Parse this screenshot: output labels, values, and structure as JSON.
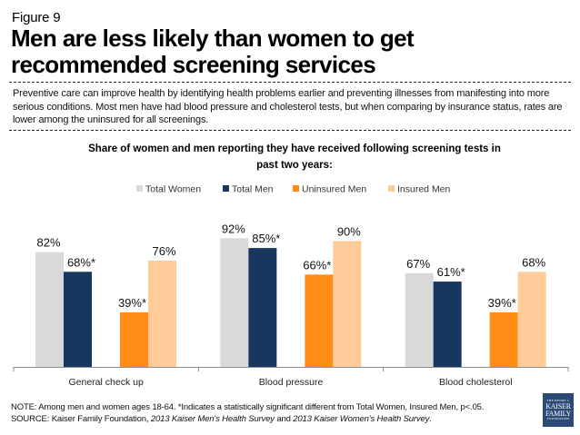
{
  "header": {
    "figure_label": "Figure 9",
    "title": "Men are less likely than women to get recommended screening services",
    "description": "Preventive care can improve health by identifying health problems earlier and preventing illnesses from manifesting into more serious conditions. Most men have had blood pressure and cholesterol tests, but when comparing by insurance status, rates are lower among the uninsured for all screenings."
  },
  "chart_data": {
    "type": "bar",
    "title": "Share of women and men reporting they have received following screening tests in past two years:",
    "title_lines": [
      "Share of women and men reporting they have received following screening tests in",
      "past two years:"
    ],
    "xlabel": "",
    "ylabel": "",
    "ylim": [
      0,
      100
    ],
    "grid": false,
    "legend_position": "top-center",
    "categories": [
      "General check up",
      "Blood pressure",
      "Blood cholesterol"
    ],
    "series": [
      {
        "name": "Total Women",
        "color": "#D9D9D9",
        "values": [
          82,
          92,
          67
        ],
        "labels": [
          "82%",
          "92%",
          "67%"
        ]
      },
      {
        "name": "Total Men",
        "color": "#17375E",
        "values": [
          68,
          85,
          61
        ],
        "labels": [
          "68%*",
          "85%*",
          "61%*"
        ]
      },
      {
        "name": "Uninsured Men",
        "color": "#FF8C14",
        "values": [
          39,
          66,
          39
        ],
        "labels": [
          "39%*",
          "66%*",
          "39%*"
        ]
      },
      {
        "name": "Insured Men",
        "color": "#FFCC99",
        "values": [
          76,
          90,
          68
        ],
        "labels": [
          "76%",
          "90%",
          "68%"
        ]
      }
    ]
  },
  "footer": {
    "note": "NOTE:  Among men and women ages 18-64.  *Indicates a statistically significant different from Total Women, Insured Men, p<.05.",
    "source_prefix": "SOURCE:  Kaiser Family Foundation, ",
    "source_italic_1": "2013 Kaiser Men's Health Survey",
    "source_mid": " and ",
    "source_italic_2": "2013 Kaiser Women's Health Survey",
    "source_suffix": "."
  },
  "logo": {
    "line1": "THE HENRY J.",
    "line2": "KAISER",
    "line3": "FAMILY",
    "line4": "FOUNDATION"
  }
}
